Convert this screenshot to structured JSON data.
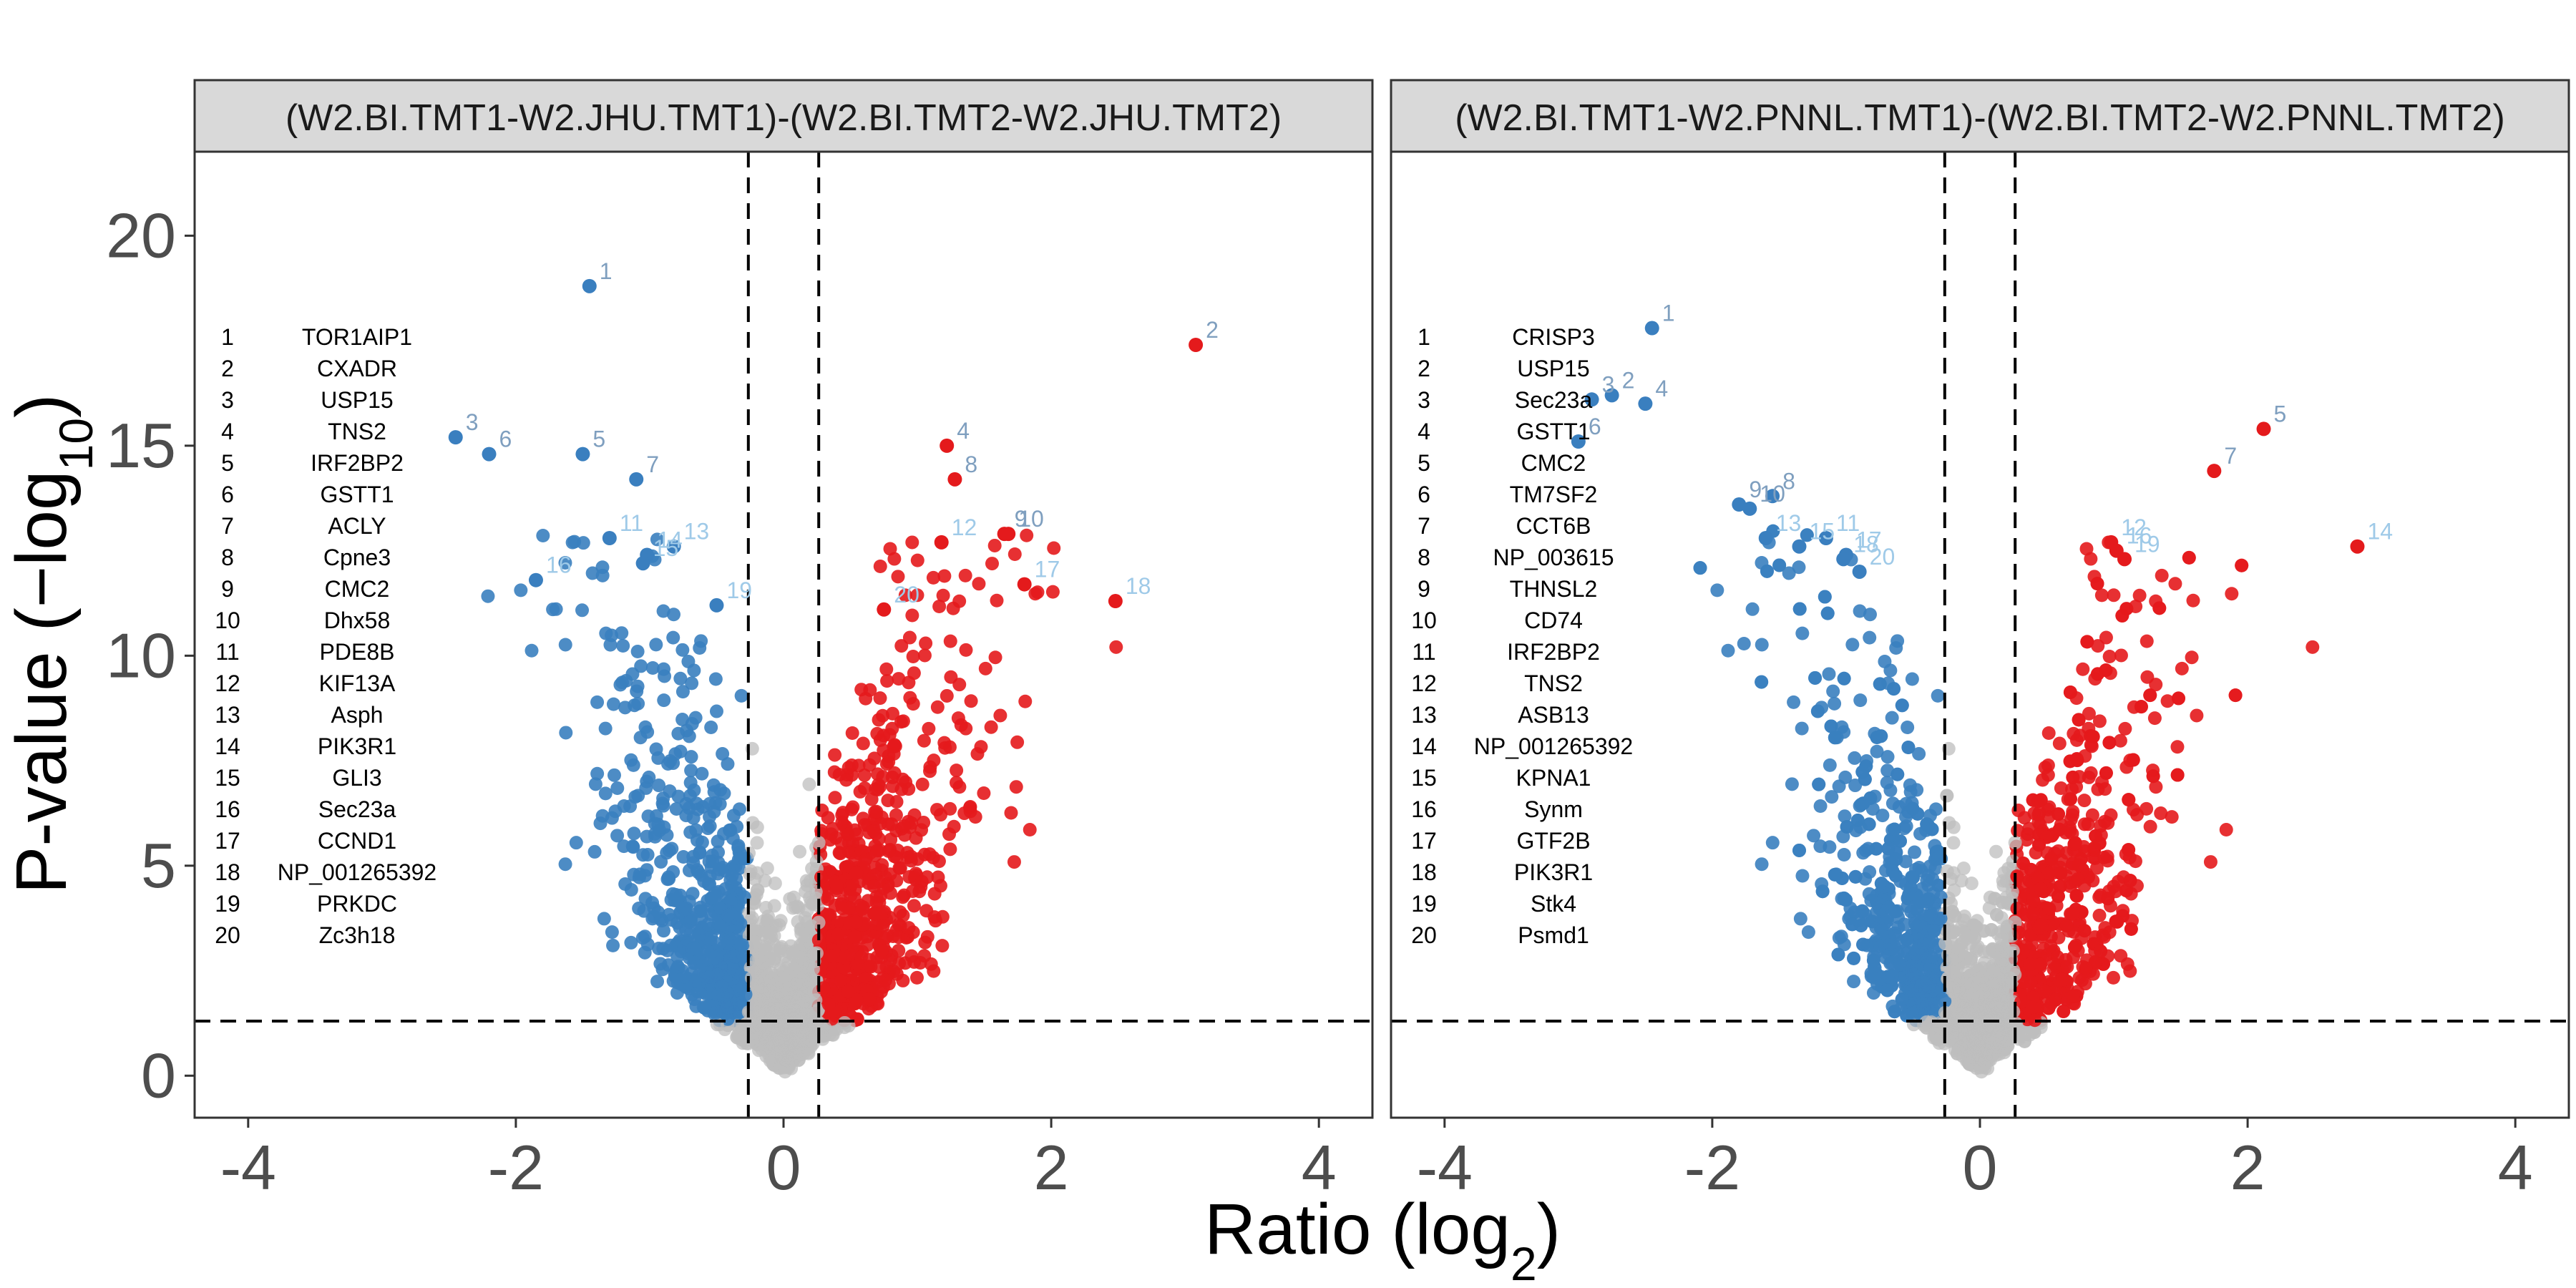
{
  "colors": {
    "down": "#3A7FBF",
    "up": "#E41A1C",
    "ns": "#BDBDBD",
    "label_down_strong": "#7F9FBF",
    "label_light": "#9FCAE8",
    "label_up": "#9AA4B0"
  },
  "chart_data": {
    "type": "scatter",
    "xlabel_main": "Ratio (log",
    "xlabel_sub": "2",
    "xlabel_end": ")",
    "ylabel_main": "P-value (−log",
    "ylabel_sub": "10",
    "ylabel_end": ")",
    "xlim": [
      -4.4,
      4.4
    ],
    "ylim": [
      -1,
      22
    ],
    "xticks": [
      -4,
      -2,
      0,
      2,
      4
    ],
    "yticks": [
      0,
      5,
      10,
      15,
      20
    ],
    "xtick_labels": [
      "-4",
      "-2",
      "0",
      "2",
      "4"
    ],
    "ytick_labels": [
      "0",
      "5",
      "10",
      "15",
      "20"
    ],
    "vlines": [
      -0.263,
      0.263
    ],
    "hline": 1.3,
    "panels": [
      {
        "strip": "(W2.BI.TMT1-W2.JHU.TMT1)-(W2.BI.TMT2-W2.JHU.TMT2)",
        "labeled_points": [
          {
            "id": 1,
            "gene": "TOR1AIP1",
            "x": -1.45,
            "y": 18.8,
            "dir": "down"
          },
          {
            "id": 2,
            "gene": "CXADR",
            "x": 3.08,
            "y": 17.4,
            "dir": "up"
          },
          {
            "id": 3,
            "gene": "USP15",
            "x": -2.45,
            "y": 15.2,
            "dir": "down"
          },
          {
            "id": 4,
            "gene": "TNS2",
            "x": 1.22,
            "y": 15.0,
            "dir": "up"
          },
          {
            "id": 5,
            "gene": "IRF2BP2",
            "x": -1.5,
            "y": 14.8,
            "dir": "down"
          },
          {
            "id": 6,
            "gene": "GSTT1",
            "x": -2.2,
            "y": 14.8,
            "dir": "down"
          },
          {
            "id": 7,
            "gene": "ACLY",
            "x": -1.1,
            "y": 14.2,
            "dir": "down"
          },
          {
            "id": 8,
            "gene": "Cpne3",
            "x": 1.28,
            "y": 14.2,
            "dir": "up"
          },
          {
            "id": 9,
            "gene": "CMC2",
            "x": 1.65,
            "y": 12.9,
            "dir": "up"
          },
          {
            "id": 10,
            "gene": "Dhx58",
            "x": 1.68,
            "y": 12.9,
            "dir": "up"
          },
          {
            "id": 11,
            "gene": "PDE8B",
            "x": -1.3,
            "y": 12.8,
            "dir": "down"
          },
          {
            "id": 12,
            "gene": "KIF13A",
            "x": 1.18,
            "y": 12.7,
            "dir": "up"
          },
          {
            "id": 13,
            "gene": "Asph",
            "x": -0.82,
            "y": 12.6,
            "dir": "down"
          },
          {
            "id": 14,
            "gene": "PIK3R1",
            "x": -1.02,
            "y": 12.4,
            "dir": "down"
          },
          {
            "id": 15,
            "gene": "GLI3",
            "x": -1.05,
            "y": 12.2,
            "dir": "down"
          },
          {
            "id": 16,
            "gene": "Sec23a",
            "x": -1.85,
            "y": 11.8,
            "dir": "down"
          },
          {
            "id": 17,
            "gene": "CCND1",
            "x": 1.8,
            "y": 11.7,
            "dir": "up"
          },
          {
            "id": 18,
            "gene": "NP_001265392",
            "x": 2.48,
            "y": 11.3,
            "dir": "up"
          },
          {
            "id": 19,
            "gene": "PRKDC",
            "x": -0.5,
            "y": 11.2,
            "dir": "down"
          },
          {
            "id": 20,
            "gene": "Zc3h18",
            "x": 0.75,
            "y": 11.1,
            "dir": "up"
          }
        ]
      },
      {
        "strip": "(W2.BI.TMT1-W2.PNNL.TMT1)-(W2.BI.TMT2-W2.PNNL.TMT2)",
        "labeled_points": [
          {
            "id": 1,
            "gene": "CRISP3",
            "x": -2.45,
            "y": 17.8,
            "dir": "down"
          },
          {
            "id": 2,
            "gene": "USP15",
            "x": -2.75,
            "y": 16.2,
            "dir": "down"
          },
          {
            "id": 3,
            "gene": "Sec23a",
            "x": -2.9,
            "y": 16.1,
            "dir": "down"
          },
          {
            "id": 4,
            "gene": "GSTT1",
            "x": -2.5,
            "y": 16.0,
            "dir": "down"
          },
          {
            "id": 5,
            "gene": "CMC2",
            "x": 2.12,
            "y": 15.4,
            "dir": "up"
          },
          {
            "id": 6,
            "gene": "TM7SF2",
            "x": -3.0,
            "y": 15.1,
            "dir": "down"
          },
          {
            "id": 7,
            "gene": "CCT6B",
            "x": 1.75,
            "y": 14.4,
            "dir": "up"
          },
          {
            "id": 8,
            "gene": "NP_003615",
            "x": -1.55,
            "y": 13.8,
            "dir": "down"
          },
          {
            "id": 9,
            "gene": "THNSL2",
            "x": -1.8,
            "y": 13.6,
            "dir": "down"
          },
          {
            "id": 10,
            "gene": "CD74",
            "x": -1.72,
            "y": 13.5,
            "dir": "down"
          },
          {
            "id": 11,
            "gene": "IRF2BP2",
            "x": -1.15,
            "y": 12.8,
            "dir": "down"
          },
          {
            "id": 12,
            "gene": "TNS2",
            "x": 0.98,
            "y": 12.7,
            "dir": "up"
          },
          {
            "id": 13,
            "gene": "ASB13",
            "x": -1.6,
            "y": 12.8,
            "dir": "down"
          },
          {
            "id": 14,
            "gene": "NP_001265392",
            "x": 2.82,
            "y": 12.6,
            "dir": "up"
          },
          {
            "id": 15,
            "gene": "KPNA1",
            "x": -1.35,
            "y": 12.6,
            "dir": "down"
          },
          {
            "id": 16,
            "gene": "Synm",
            "x": 1.02,
            "y": 12.5,
            "dir": "up"
          },
          {
            "id": 17,
            "gene": "GTF2B",
            "x": -1.0,
            "y": 12.4,
            "dir": "down"
          },
          {
            "id": 18,
            "gene": "PIK3R1",
            "x": -1.02,
            "y": 12.3,
            "dir": "down"
          },
          {
            "id": 19,
            "gene": "Stk4",
            "x": 1.08,
            "y": 12.3,
            "dir": "up"
          },
          {
            "id": 20,
            "gene": "Psmd1",
            "x": -0.9,
            "y": 12.0,
            "dir": "down"
          }
        ]
      }
    ]
  }
}
